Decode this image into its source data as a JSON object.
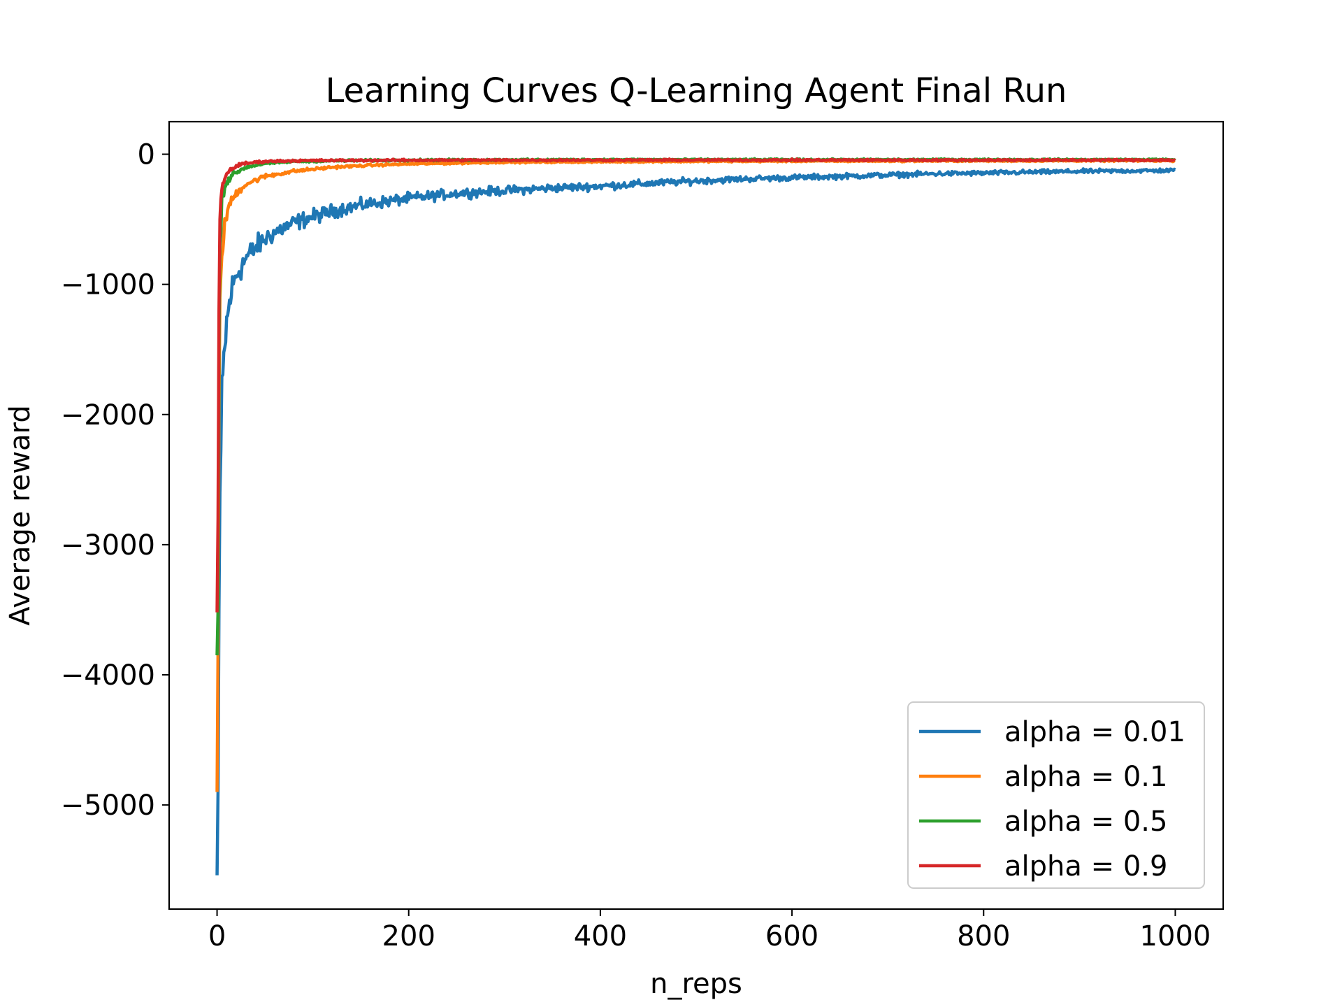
{
  "chart_data": {
    "type": "line",
    "title": "Learning Curves Q-Learning Agent Final Run",
    "xlabel": "n_reps",
    "ylabel": "Average reward",
    "xlim": [
      -50,
      1050
    ],
    "ylim": [
      -5800,
      250
    ],
    "x_ticks": [
      0,
      200,
      400,
      600,
      800,
      1000
    ],
    "y_ticks": [
      0,
      -1000,
      -2000,
      -3000,
      -4000,
      -5000
    ],
    "x_tick_labels": [
      "0",
      "200",
      "400",
      "600",
      "800",
      "1000"
    ],
    "y_tick_labels": [
      "0",
      "−1000",
      "−2000",
      "−3000",
      "−4000",
      "−5000"
    ],
    "grid": false,
    "legend_position": "lower-right",
    "series": [
      {
        "name": "alpha = 0.01",
        "color": "#1f77b4",
        "points": [
          [
            0,
            -5540
          ],
          [
            1,
            -4900
          ],
          [
            2,
            -3500
          ],
          [
            3,
            -2600
          ],
          [
            4,
            -2300
          ],
          [
            5,
            -1900
          ],
          [
            7,
            -1600
          ],
          [
            10,
            -1300
          ],
          [
            15,
            -1050
          ],
          [
            20,
            -930
          ],
          [
            30,
            -800
          ],
          [
            40,
            -720
          ],
          [
            50,
            -650
          ],
          [
            60,
            -600
          ],
          [
            80,
            -530
          ],
          [
            100,
            -480
          ],
          [
            130,
            -420
          ],
          [
            160,
            -380
          ],
          [
            200,
            -340
          ],
          [
            250,
            -300
          ],
          [
            300,
            -280
          ],
          [
            350,
            -260
          ],
          [
            400,
            -245
          ],
          [
            450,
            -225
          ],
          [
            500,
            -205
          ],
          [
            550,
            -190
          ],
          [
            600,
            -180
          ],
          [
            650,
            -170
          ],
          [
            700,
            -160
          ],
          [
            750,
            -150
          ],
          [
            800,
            -145
          ],
          [
            850,
            -138
          ],
          [
            900,
            -132
          ],
          [
            950,
            -128
          ],
          [
            1000,
            -125
          ]
        ]
      },
      {
        "name": "alpha = 0.1",
        "color": "#ff7f0e",
        "points": [
          [
            0,
            -4900
          ],
          [
            1,
            -3800
          ],
          [
            2,
            -2000
          ],
          [
            3,
            -1100
          ],
          [
            5,
            -750
          ],
          [
            8,
            -550
          ],
          [
            12,
            -400
          ],
          [
            20,
            -300
          ],
          [
            30,
            -230
          ],
          [
            50,
            -170
          ],
          [
            80,
            -130
          ],
          [
            120,
            -100
          ],
          [
            160,
            -85
          ],
          [
            200,
            -75
          ],
          [
            300,
            -62
          ],
          [
            400,
            -58
          ],
          [
            500,
            -55
          ],
          [
            600,
            -53
          ],
          [
            700,
            -52
          ],
          [
            800,
            -51
          ],
          [
            900,
            -50
          ],
          [
            1000,
            -50
          ]
        ]
      },
      {
        "name": "alpha = 0.5",
        "color": "#2ca02c",
        "points": [
          [
            0,
            -3850
          ],
          [
            1,
            -3500
          ],
          [
            2,
            -1500
          ],
          [
            3,
            -700
          ],
          [
            5,
            -350
          ],
          [
            8,
            -250
          ],
          [
            12,
            -190
          ],
          [
            20,
            -140
          ],
          [
            30,
            -100
          ],
          [
            50,
            -70
          ],
          [
            80,
            -55
          ],
          [
            120,
            -50
          ],
          [
            200,
            -45
          ],
          [
            400,
            -42
          ],
          [
            600,
            -42
          ],
          [
            800,
            -42
          ],
          [
            1000,
            -42
          ]
        ]
      },
      {
        "name": "alpha = 0.9",
        "color": "#d62728",
        "points": [
          [
            0,
            -3520
          ],
          [
            1,
            -2800
          ],
          [
            2,
            -1200
          ],
          [
            3,
            -500
          ],
          [
            5,
            -280
          ],
          [
            8,
            -180
          ],
          [
            12,
            -130
          ],
          [
            20,
            -90
          ],
          [
            30,
            -70
          ],
          [
            50,
            -55
          ],
          [
            80,
            -50
          ],
          [
            120,
            -48
          ],
          [
            200,
            -46
          ],
          [
            400,
            -45
          ],
          [
            600,
            -45
          ],
          [
            800,
            -45
          ],
          [
            1000,
            -45
          ]
        ]
      }
    ]
  }
}
